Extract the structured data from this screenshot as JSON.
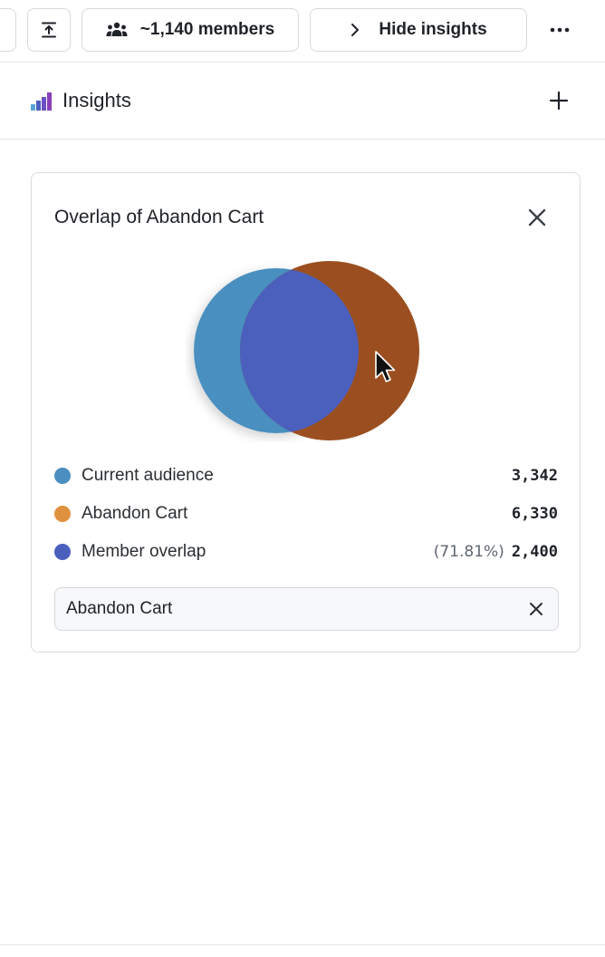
{
  "toolbar": {
    "upload_icon": "upload-icon",
    "members_label": "~1,140 members",
    "members_icon": "people-icon",
    "hide_label": "Hide insights",
    "hide_icon": "chevron-right-icon",
    "more_icon": "more-horizontal-icon"
  },
  "insights": {
    "title": "Insights",
    "logo_icon": "bar-chart-logo-icon",
    "add_icon": "plus-icon"
  },
  "card": {
    "title": "Overlap of Abandon Cart",
    "close_icon": "close-icon",
    "legend": [
      {
        "label": "Current audience",
        "value": "3,342",
        "color": "#4a8fbf"
      },
      {
        "label": "Abandon Cart",
        "value": "6,330",
        "color": "#e0913f"
      },
      {
        "label": "Member overlap",
        "percent": "(71.81%)",
        "value": "2,400",
        "color": "#4b5fbd"
      }
    ],
    "filter_chip": {
      "label": "Abandon Cart",
      "clear_icon": "close-icon"
    }
  },
  "colors": {
    "current_audience": "#4a8fbf",
    "abandon_cart_circle": "#9b4f20",
    "overlap": "#4b5fbd",
    "border": "#d9dce0"
  }
}
